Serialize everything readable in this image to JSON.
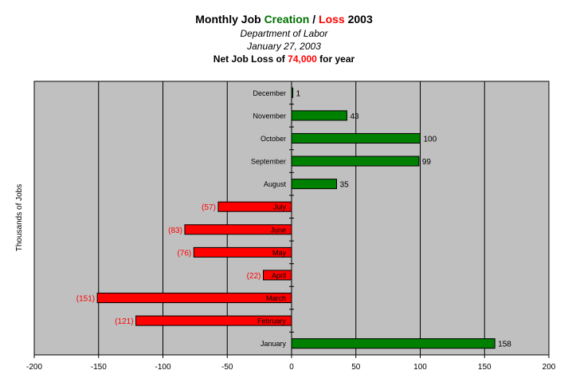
{
  "title": {
    "prefix": "Monthly Job ",
    "green_word": "Creation",
    "slash": " / ",
    "red_word": "Loss",
    "suffix": " 2003",
    "subtitle1": "Department of Labor",
    "subtitle2": "January 27, 2003",
    "note_prefix": "Net Job Loss of ",
    "note_value": "74,000",
    "note_suffix": " for year"
  },
  "colors": {
    "positive": "#008000",
    "negative": "#ff0000",
    "plot_bg": "#c0c0c0",
    "red_text": "#ff0000",
    "green_text": "#007000"
  },
  "chart_data": {
    "type": "bar",
    "orientation": "horizontal",
    "title": "Monthly Job Creation / Loss 2003",
    "ylabel": "Thousands of Jobs",
    "xlabel": "",
    "xlim": [
      -200,
      200
    ],
    "xticks": [
      -200,
      -150,
      -100,
      -50,
      0,
      50,
      100,
      150,
      200
    ],
    "xtick_labels": [
      "-200",
      "-150",
      "-100",
      "-50",
      "0",
      "50",
      "100",
      "150",
      "200"
    ],
    "grid": "vertical major gridlines",
    "categories": [
      "January",
      "February",
      "March",
      "April",
      "May",
      "June",
      "July",
      "August",
      "September",
      "October",
      "November",
      "December"
    ],
    "values": [
      158,
      -121,
      -151,
      -22,
      -76,
      -83,
      -57,
      35,
      99,
      100,
      43,
      1
    ],
    "value_labels": [
      "158",
      "(121)",
      "(151)",
      "(22)",
      "(76)",
      "(83)",
      "(57)",
      "35",
      "99",
      "100",
      "43",
      "1"
    ]
  }
}
